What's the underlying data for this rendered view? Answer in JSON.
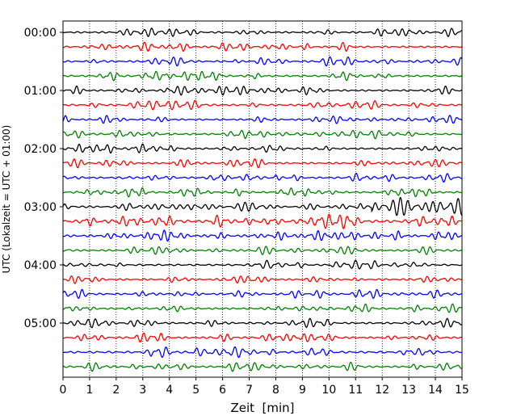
{
  "chart_data": {
    "type": "line",
    "title": "",
    "xlabel": "Zeit  [min]",
    "ylabel": "UTC (Lokalzeit = UTC + 01:00)",
    "xlim": [
      0,
      15
    ],
    "x_ticks": [
      "0",
      "1",
      "2",
      "3",
      "4",
      "5",
      "6",
      "7",
      "8",
      "9",
      "10",
      "11",
      "12",
      "13",
      "14",
      "15"
    ],
    "y_ticks": [
      "00:00",
      "01:00",
      "02:00",
      "03:00",
      "04:00",
      "05:00"
    ],
    "trace_interval_min": 15,
    "grid": "vertical dotted at each minute",
    "color_cycle": [
      "#000000",
      "#ff0000",
      "#0000ff",
      "#008000"
    ],
    "traces": [
      {
        "start": "00:00",
        "amplitude": 1.0
      },
      {
        "start": "00:15",
        "amplitude": 1.0
      },
      {
        "start": "00:30",
        "amplitude": 1.0
      },
      {
        "start": "00:45",
        "amplitude": 1.0
      },
      {
        "start": "01:00",
        "amplitude": 1.0
      },
      {
        "start": "01:15",
        "amplitude": 1.0
      },
      {
        "start": "01:30",
        "amplitude": 0.9
      },
      {
        "start": "01:45",
        "amplitude": 1.0
      },
      {
        "start": "02:00",
        "amplitude": 1.0
      },
      {
        "start": "02:15",
        "amplitude": 1.0
      },
      {
        "start": "02:30",
        "amplitude": 1.0
      },
      {
        "start": "02:45",
        "amplitude": 1.0
      },
      {
        "start": "03:00",
        "amplitude": 1.2,
        "event_start_min": 11.6,
        "event_amplitude": 3.2
      },
      {
        "start": "03:15",
        "amplitude": 1.6
      },
      {
        "start": "03:30",
        "amplitude": 1.3
      },
      {
        "start": "03:45",
        "amplitude": 1.0
      },
      {
        "start": "04:00",
        "amplitude": 1.0
      },
      {
        "start": "04:15",
        "amplitude": 1.0
      },
      {
        "start": "04:30",
        "amplitude": 1.0
      },
      {
        "start": "04:45",
        "amplitude": 1.0
      },
      {
        "start": "05:00",
        "amplitude": 1.0
      },
      {
        "start": "05:15",
        "amplitude": 1.0
      },
      {
        "start": "05:30",
        "amplitude": 1.2
      },
      {
        "start": "05:45",
        "amplitude": 1.0
      }
    ]
  }
}
